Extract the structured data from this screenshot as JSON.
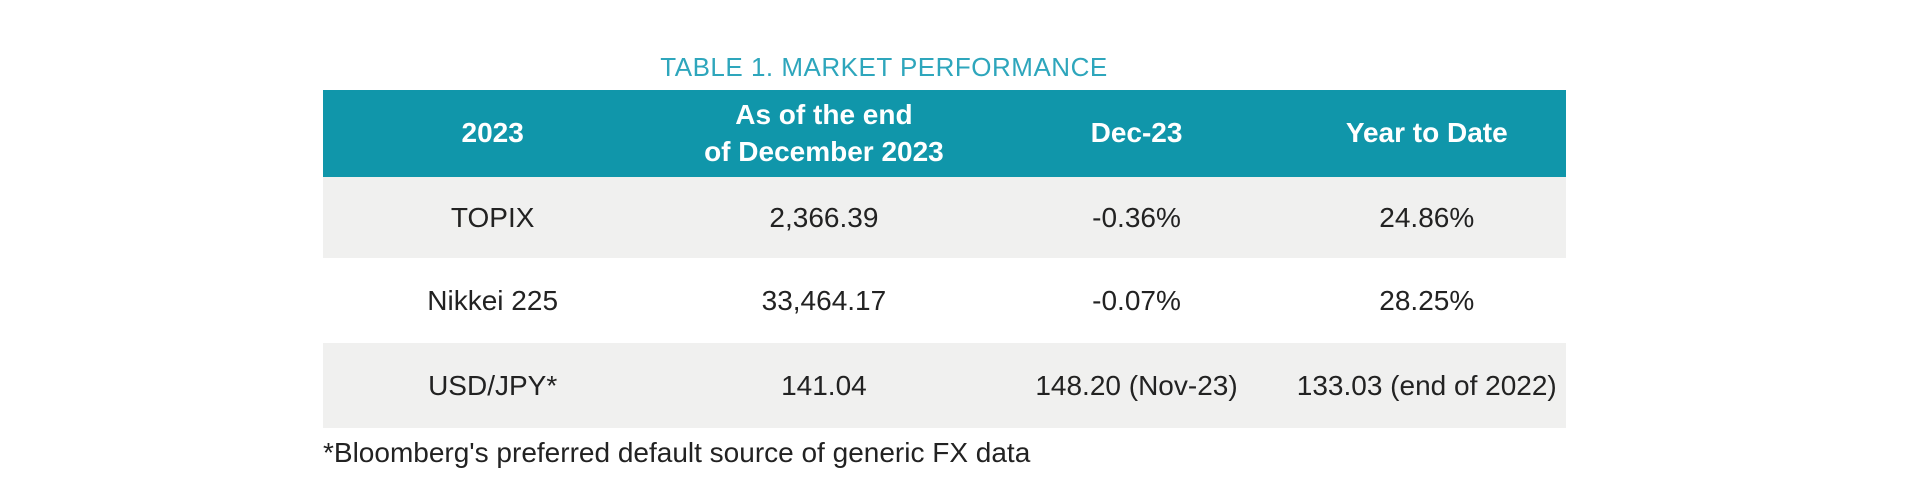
{
  "chart_data": {
    "type": "table",
    "title": "TABLE 1. MARKET PERFORMANCE",
    "columns": [
      "2023",
      "As of the end of December 2023",
      "Dec-23",
      "Year to Date"
    ],
    "rows": [
      [
        "TOPIX",
        "2,366.39",
        "-0.36%",
        "24.86%"
      ],
      [
        "Nikkei 225",
        "33,464.17",
        "-0.07%",
        "28.25%"
      ],
      [
        "USD/JPY*",
        "141.04",
        "148.20 (Nov-23)",
        "133.03 (end of 2022)"
      ]
    ],
    "footnote": "*Bloomberg's preferred default source of generic FX data"
  },
  "table": {
    "title": "TABLE 1. MARKET PERFORMANCE",
    "columns": [
      {
        "label": "2023"
      },
      {
        "label": "As of the end",
        "label2": "of December 2023"
      },
      {
        "label": "Dec-23"
      },
      {
        "label": "Year to Date"
      }
    ],
    "rows": [
      {
        "cells": [
          "TOPIX",
          "2,366.39",
          "-0.36%",
          "24.86%"
        ]
      },
      {
        "cells": [
          "Nikkei 225",
          "33,464.17",
          "-0.07%",
          "28.25%"
        ]
      },
      {
        "cells": [
          "USD/JPY*",
          "141.04",
          "148.20 (Nov-23)",
          "133.03 (end of 2022)"
        ]
      }
    ],
    "footnote": "*Bloomberg's preferred default source of generic FX data"
  },
  "colors": {
    "header_bg": "#1096aa",
    "header_text": "#ffffff",
    "title_text": "#2ea6bc",
    "row_alt_bg": "#f0f0ef",
    "body_text": "#222222"
  }
}
